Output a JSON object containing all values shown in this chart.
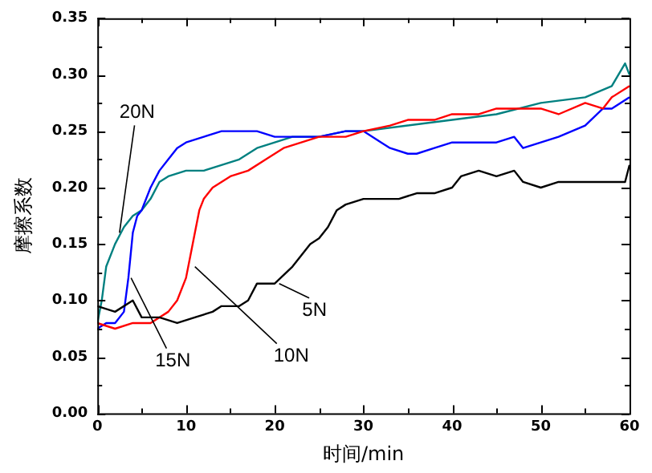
{
  "chart_data": {
    "type": "line",
    "xlabel": "时间/min",
    "ylabel": "摩擦系数",
    "marker": "none",
    "grid": false,
    "line_style": "solid",
    "xlim": [
      0,
      60
    ],
    "ylim": [
      0,
      0.35
    ],
    "xticks": [
      0,
      {
        "value": 5,
        "label": null
      },
      10,
      {
        "value": 15,
        "label": null
      },
      20,
      {
        "value": 25,
        "label": null
      },
      30,
      {
        "value": 35,
        "label": null
      },
      40,
      {
        "value": 45,
        "label": null
      },
      50,
      {
        "value": 55,
        "label": null
      },
      60
    ],
    "yticks": [
      {
        "value": 0,
        "label": "0.00"
      },
      {
        "value": 0.025,
        "label": null
      },
      {
        "value": 0.05,
        "label": "0.05"
      },
      {
        "value": 0.075,
        "label": null
      },
      {
        "value": 0.1,
        "label": "0.10"
      },
      {
        "value": 0.125,
        "label": null
      },
      {
        "value": 0.15,
        "label": "0.15"
      },
      {
        "value": 0.175,
        "label": null
      },
      {
        "value": 0.2,
        "label": "0.20"
      },
      {
        "value": 0.225,
        "label": null
      },
      {
        "value": 0.25,
        "label": "0.25"
      },
      {
        "value": 0.275,
        "label": null
      },
      {
        "value": 0.3,
        "label": "0.30"
      },
      {
        "value": 0.325,
        "label": null
      },
      {
        "value": 0.35,
        "label": "0.35"
      }
    ],
    "series": [
      {
        "color": "#000000",
        "x": [
          0,
          2,
          4,
          5,
          7,
          9,
          11,
          13,
          14,
          16,
          17,
          18,
          20,
          22,
          24,
          25,
          26,
          27,
          28,
          30,
          32,
          34,
          36,
          38,
          40,
          41,
          43,
          45,
          47,
          48,
          50,
          52,
          54,
          56,
          58,
          59.5,
          60
        ],
        "values": [
          0.095,
          0.09,
          0.1,
          0.085,
          0.085,
          0.08,
          0.085,
          0.09,
          0.095,
          0.095,
          0.1,
          0.115,
          0.115,
          0.13,
          0.15,
          0.155,
          0.165,
          0.18,
          0.185,
          0.19,
          0.19,
          0.19,
          0.195,
          0.195,
          0.2,
          0.21,
          0.215,
          0.21,
          0.215,
          0.205,
          0.2,
          0.205,
          0.205,
          0.205,
          0.205,
          0.205,
          0.22
        ]
      },
      {
        "color": "#ff0000",
        "x": [
          0,
          2,
          4,
          6,
          7,
          8,
          9,
          10,
          10.5,
          11,
          11.5,
          12,
          13,
          15,
          17,
          19,
          21,
          23,
          25,
          28,
          30,
          33,
          35,
          38,
          40,
          43,
          45,
          48,
          50,
          52,
          55,
          57,
          58,
          60
        ],
        "values": [
          0.08,
          0.075,
          0.08,
          0.08,
          0.085,
          0.09,
          0.1,
          0.12,
          0.14,
          0.16,
          0.18,
          0.19,
          0.2,
          0.21,
          0.215,
          0.225,
          0.235,
          0.24,
          0.245,
          0.245,
          0.25,
          0.255,
          0.26,
          0.26,
          0.265,
          0.265,
          0.27,
          0.27,
          0.27,
          0.265,
          0.275,
          0.27,
          0.28,
          0.29
        ]
      },
      {
        "color": "#0000ff",
        "x": [
          0,
          1,
          2,
          3,
          3.5,
          4,
          4.5,
          5,
          6,
          7,
          8,
          9,
          10,
          12,
          14,
          16,
          18,
          20,
          22,
          25,
          28,
          30,
          32,
          33,
          35,
          36,
          38,
          40,
          42,
          45,
          47,
          48,
          50,
          52,
          55,
          57,
          58,
          60
        ],
        "values": [
          0.075,
          0.08,
          0.08,
          0.09,
          0.12,
          0.16,
          0.175,
          0.18,
          0.2,
          0.215,
          0.225,
          0.235,
          0.24,
          0.245,
          0.25,
          0.25,
          0.25,
          0.245,
          0.245,
          0.245,
          0.25,
          0.25,
          0.24,
          0.235,
          0.23,
          0.23,
          0.235,
          0.24,
          0.24,
          0.24,
          0.245,
          0.235,
          0.24,
          0.245,
          0.255,
          0.27,
          0.27,
          0.28
        ]
      },
      {
        "color": "#008080",
        "x": [
          0,
          0.5,
          1,
          2,
          3,
          4,
          5,
          6,
          7,
          8,
          10,
          12,
          14,
          16,
          18,
          20,
          22,
          25,
          28,
          30,
          35,
          40,
          45,
          50,
          55,
          58,
          59.5,
          60
        ],
        "values": [
          0.08,
          0.1,
          0.13,
          0.15,
          0.165,
          0.175,
          0.18,
          0.19,
          0.205,
          0.21,
          0.215,
          0.215,
          0.22,
          0.225,
          0.235,
          0.24,
          0.245,
          0.245,
          0.25,
          0.25,
          0.255,
          0.26,
          0.265,
          0.275,
          0.28,
          0.29,
          0.31,
          0.3
        ]
      }
    ],
    "annotations": [
      {
        "text": "20N",
        "x": 2.5,
        "y": 0.16
      },
      {
        "text": "15N",
        "x": 3.8,
        "y": 0.12
      },
      {
        "text": "10N",
        "x": 11,
        "y": 0.13
      },
      {
        "text": "5N",
        "x": 20.5,
        "y": 0.115
      }
    ]
  }
}
